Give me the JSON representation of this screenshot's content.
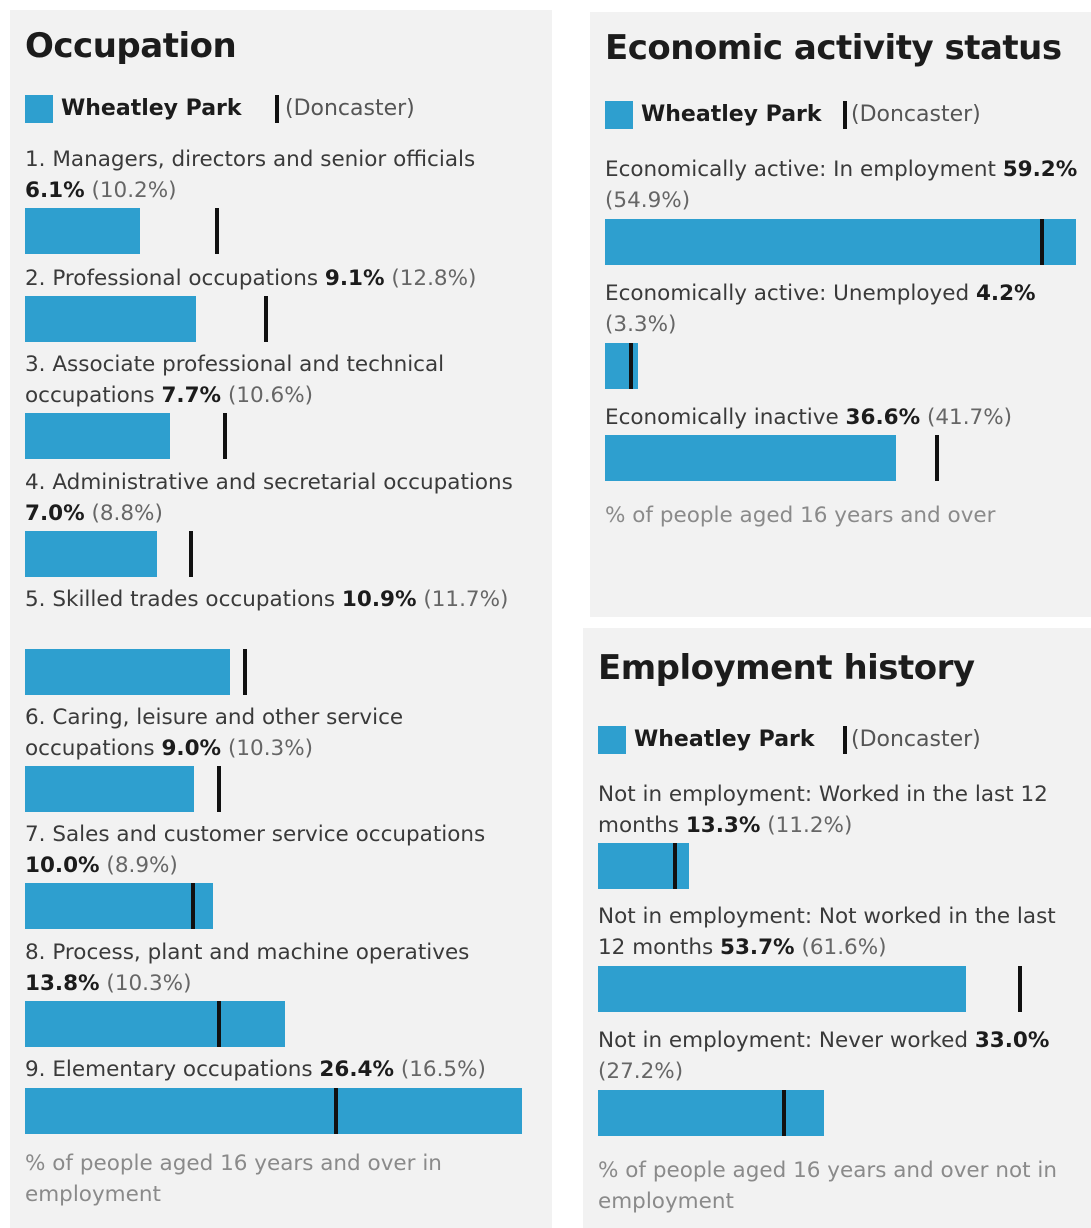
{
  "legend": {
    "primary": "Wheatley Park",
    "secondary": "(Doncaster)"
  },
  "colors": {
    "bar": "#2e9fcf",
    "marker": "#111111",
    "panel_bg": "#f2f2f2"
  },
  "chart_data": [
    {
      "type": "bar",
      "title": "Occupation",
      "series": [
        {
          "name": "Wheatley Park",
          "values": [
            6.1,
            9.1,
            7.7,
            7.0,
            10.9,
            9.0,
            10.0,
            13.8,
            26.4
          ]
        },
        {
          "name": "(Doncaster)",
          "values": [
            10.2,
            12.8,
            10.6,
            8.8,
            11.7,
            10.3,
            8.9,
            10.3,
            16.5
          ]
        }
      ],
      "items": [
        {
          "label": "1. Managers, directors and senior officials",
          "value": 6.1,
          "value_text": "6.1%",
          "comparison": 10.2,
          "comparison_text": "(10.2%)"
        },
        {
          "label": "2. Professional occupations",
          "value": 9.1,
          "value_text": "9.1%",
          "comparison": 12.8,
          "comparison_text": "(12.8%)"
        },
        {
          "label": "3. Associate professional and technical occupations",
          "value": 7.7,
          "value_text": "7.7%",
          "comparison": 10.6,
          "comparison_text": "(10.6%)"
        },
        {
          "label": "4. Administrative and secretarial occupations",
          "value": 7.0,
          "value_text": "7.0%",
          "comparison": 8.8,
          "comparison_text": "(8.8%)"
        },
        {
          "label": "5. Skilled trades occupations",
          "value": 10.9,
          "value_text": "10.9%",
          "comparison": 11.7,
          "comparison_text": "(11.7%)"
        },
        {
          "label": "6. Caring, leisure and other service occupations",
          "value": 9.0,
          "value_text": "9.0%",
          "comparison": 10.3,
          "comparison_text": "(10.3%)"
        },
        {
          "label": "7. Sales and customer service occupations",
          "value": 10.0,
          "value_text": "10.0%",
          "comparison": 8.9,
          "comparison_text": "(8.9%)"
        },
        {
          "label": "8. Process, plant and machine operatives",
          "value": 13.8,
          "value_text": "13.8%",
          "comparison": 10.3,
          "comparison_text": "(10.3%)"
        },
        {
          "label": "9. Elementary occupations",
          "value": 26.4,
          "value_text": "26.4%",
          "comparison": 16.5,
          "comparison_text": "(16.5%)"
        }
      ],
      "xlim": [
        0,
        26.4
      ],
      "footnote": "% of people aged 16 years and over in employment"
    },
    {
      "type": "bar",
      "title": "Economic activity status",
      "series": [
        {
          "name": "Wheatley Park",
          "values": [
            59.2,
            4.2,
            36.6
          ]
        },
        {
          "name": "(Doncaster)",
          "values": [
            54.9,
            3.3,
            41.7
          ]
        }
      ],
      "items": [
        {
          "label": "Economically active: In employment",
          "value": 59.2,
          "value_text": "59.2%",
          "comparison": 54.9,
          "comparison_text": "(54.9%)"
        },
        {
          "label": "Economically active: Unemployed",
          "value": 4.2,
          "value_text": "4.2%",
          "comparison": 3.3,
          "comparison_text": "(3.3%)"
        },
        {
          "label": "Economically inactive",
          "value": 36.6,
          "value_text": "36.6%",
          "comparison": 41.7,
          "comparison_text": "(41.7%)"
        }
      ],
      "xlim": [
        0,
        59.2
      ],
      "footnote": "% of people aged 16 years and over"
    },
    {
      "type": "bar",
      "title": "Employment history",
      "series": [
        {
          "name": "Wheatley Park",
          "values": [
            13.3,
            53.7,
            33.0
          ]
        },
        {
          "name": "(Doncaster)",
          "values": [
            11.2,
            61.6,
            27.2
          ]
        }
      ],
      "items": [
        {
          "label": "Not in employment: Worked in the last 12 months",
          "value": 13.3,
          "value_text": "13.3%",
          "comparison": 11.2,
          "comparison_text": "(11.2%)"
        },
        {
          "label": "Not in employment: Not worked in the last 12 months",
          "value": 53.7,
          "value_text": "53.7%",
          "comparison": 61.6,
          "comparison_text": "(61.6%)"
        },
        {
          "label": "Not in employment: Never worked",
          "value": 33.0,
          "value_text": "33.0%",
          "comparison": 27.2,
          "comparison_text": "(27.2%)"
        }
      ],
      "xlim": [
        0,
        61.6
      ],
      "footnote": "% of people aged 16 years and over not in employment"
    }
  ]
}
